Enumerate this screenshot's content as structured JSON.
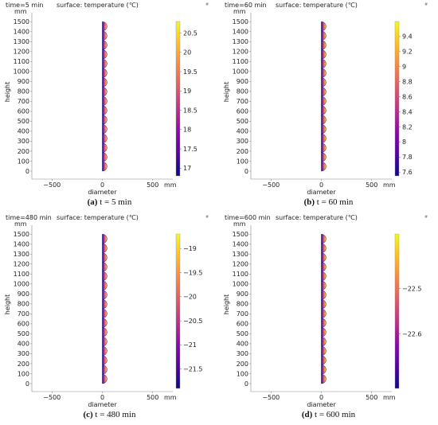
{
  "colors": {
    "colormap": [
      "#0d0887",
      "#5302a3",
      "#8b0aa5",
      "#b83289",
      "#db5c68",
      "#f48849",
      "#febd2a",
      "#f0f921"
    ],
    "bg": "#ffffff",
    "axis": "#222222"
  },
  "chart_data": [
    {
      "type": "heatmap",
      "panel_label": "(a)",
      "caption_text": " t = 5 min",
      "title": "time=5 min",
      "surface_label": "surface:  temperature  (℃)",
      "corner_mark": "#",
      "y_unit": "mm",
      "x_unit": "mm",
      "xlabel": "diameter",
      "ylabel": "height",
      "xlim": [
        -700,
        700
      ],
      "ylim": [
        -80,
        1590
      ],
      "xticks": [
        -500,
        0,
        500
      ],
      "yticks": [
        0,
        100,
        200,
        300,
        400,
        500,
        600,
        700,
        800,
        900,
        1000,
        1100,
        1200,
        1300,
        1400,
        1500
      ],
      "colorbar": {
        "min": 16.8,
        "max": 20.8,
        "ticks": [
          "17",
          "17.5",
          "18",
          "18.5",
          "19",
          "19.5",
          "20",
          "20.5"
        ],
        "tick_values": [
          17,
          17.5,
          18,
          18.5,
          19,
          19.5,
          20,
          20.5
        ]
      }
    },
    {
      "type": "heatmap",
      "panel_label": "(b)",
      "caption_text": " t = 60 min",
      "title": "time=60 min",
      "surface_label": "surface:  temperature  (℃)",
      "corner_mark": "#",
      "y_unit": "mm",
      "x_unit": "mm",
      "xlabel": "diameter",
      "ylabel": "height",
      "xlim": [
        -700,
        700
      ],
      "ylim": [
        -80,
        1590
      ],
      "xticks": [
        -500,
        0,
        500
      ],
      "yticks": [
        0,
        100,
        200,
        300,
        400,
        500,
        600,
        700,
        800,
        900,
        1000,
        1100,
        1200,
        1300,
        1400,
        1500
      ],
      "colorbar": {
        "min": 7.55,
        "max": 9.6,
        "ticks": [
          "7.6",
          "7.8",
          "8",
          "8.2",
          "8.4",
          "8.6",
          "8.8",
          "9",
          "9.2",
          "9.4"
        ],
        "tick_values": [
          7.6,
          7.8,
          8,
          8.2,
          8.4,
          8.6,
          8.8,
          9,
          9.2,
          9.4
        ]
      }
    },
    {
      "type": "heatmap",
      "panel_label": "(c)",
      "caption_text": " t = 480 min",
      "title": "time=480 min",
      "surface_label": "surface:  temperature  (℃)",
      "corner_mark": "#",
      "y_unit": "mm",
      "x_unit": "mm",
      "xlabel": "diameter",
      "ylabel": "height",
      "xlim": [
        -700,
        700
      ],
      "ylim": [
        -80,
        1590
      ],
      "xticks": [
        -500,
        0,
        500
      ],
      "yticks": [
        0,
        100,
        200,
        300,
        400,
        500,
        600,
        700,
        800,
        900,
        1000,
        1100,
        1200,
        1300,
        1400,
        1500
      ],
      "colorbar": {
        "min": -21.9,
        "max": -18.7,
        "ticks": [
          "-21.5",
          "-21",
          "-20.5",
          "-20",
          "-19.5",
          "-19"
        ],
        "tick_values": [
          -21.5,
          -21,
          -20.5,
          -20,
          -19.5,
          -19
        ]
      }
    },
    {
      "type": "heatmap",
      "panel_label": "(d)",
      "caption_text": " t = 600 min",
      "title": "time=600 min",
      "surface_label": "surface:  temperature  (℃)",
      "corner_mark": "#",
      "y_unit": "mm",
      "x_unit": "mm",
      "xlabel": "diameter",
      "ylabel": "height",
      "xlim": [
        -700,
        700
      ],
      "ylim": [
        -80,
        1590
      ],
      "xticks": [
        -500,
        0,
        500
      ],
      "yticks": [
        0,
        100,
        200,
        300,
        400,
        500,
        600,
        700,
        800,
        900,
        1000,
        1100,
        1200,
        1300,
        1400,
        1500
      ],
      "colorbar": {
        "min": -22.72,
        "max": -22.38,
        "ticks": [
          "-22.6",
          "-22.5"
        ],
        "tick_values": [
          -22.6,
          -22.5
        ]
      }
    }
  ]
}
